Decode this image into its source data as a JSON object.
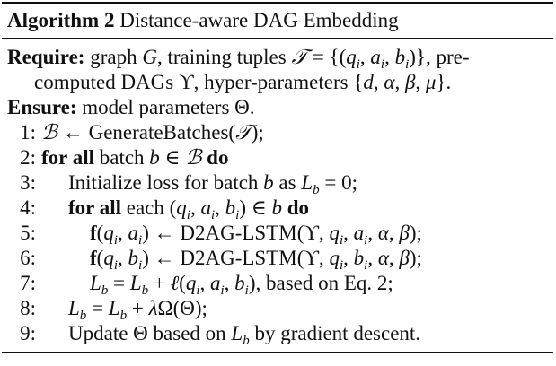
{
  "algorithm": {
    "label": "Algorithm 2",
    "title": "Distance-aware DAG Embedding",
    "require_label": "Require:",
    "ensure_label": "Ensure:",
    "ensure_text": "model parameters",
    "require_text_1": "graph",
    "require_text_2": ", training tuples",
    "require_text_3": ", pre-",
    "require_text_4": "computed DAGs",
    "require_text_5": ", hyper-parameters",
    "lines": [
      {
        "n": "1:"
      },
      {
        "n": "2:",
        "kw_a": "for all",
        "text": "batch",
        "kw_b": "do"
      },
      {
        "n": "3:",
        "text": "Initialize loss for batch",
        "text_b": "as"
      },
      {
        "n": "4:",
        "kw_a": "for all",
        "text": "each",
        "kw_b": "do"
      },
      {
        "n": "5:",
        "fn": "D2AG-LSTM"
      },
      {
        "n": "6:",
        "fn": "D2AG-LSTM"
      },
      {
        "n": "7:",
        "text": ", based on Eq. 2;"
      },
      {
        "n": "8:"
      },
      {
        "n": "9:",
        "text": "Update",
        "text_b": "based on",
        "text_c": "by gradient descent."
      }
    ],
    "generate_fn": "GenerateBatches"
  }
}
